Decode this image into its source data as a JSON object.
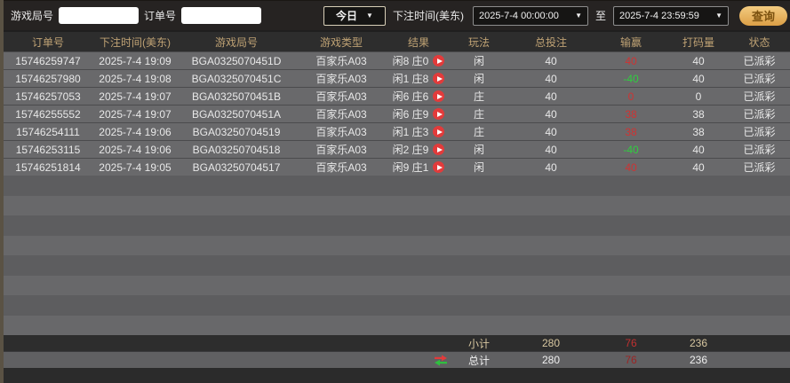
{
  "filters": {
    "game_round_label": "游戏局号",
    "game_round_value": "",
    "order_label": "订单号",
    "order_value": "",
    "preset": "今日",
    "bet_time_label": "下注时间(美东)",
    "start_time": "2025-7-4 00:00:00",
    "to_label": "至",
    "end_time": "2025-7-4 23:59:59",
    "search_label": "查询"
  },
  "icons": {
    "dropdown_caret": "▼",
    "play_badge": "▶",
    "swap_arrows": "⇄"
  },
  "colors": {
    "win_red": "#cf3333",
    "loss_green": "#2fcf3f",
    "header_gold": "#bfa274",
    "button_gold": "#e8b45e",
    "row_gray": "#69696b"
  },
  "table": {
    "headers": [
      "订单号",
      "下注时间(美东)",
      "游戏局号",
      "游戏类型",
      "结果",
      "玩法",
      "总投注",
      "输赢",
      "打码量",
      "状态"
    ],
    "rows": [
      {
        "order": "15746259747",
        "time": "2025-7-4 19:09",
        "round": "BGA0325070451D",
        "type": "百家乐A03",
        "result": "闲8 庄0",
        "play": "闲",
        "bet": "40",
        "winloss": "40",
        "winloss_color": "red",
        "turnover": "40",
        "status": "已派彩"
      },
      {
        "order": "15746257980",
        "time": "2025-7-4 19:08",
        "round": "BGA0325070451C",
        "type": "百家乐A03",
        "result": "闲1 庄8",
        "play": "闲",
        "bet": "40",
        "winloss": "-40",
        "winloss_color": "green",
        "turnover": "40",
        "status": "已派彩"
      },
      {
        "order": "15746257053",
        "time": "2025-7-4 19:07",
        "round": "BGA0325070451B",
        "type": "百家乐A03",
        "result": "闲6 庄6",
        "play": "庄",
        "bet": "40",
        "winloss": "0",
        "winloss_color": "red",
        "turnover": "0",
        "status": "已派彩"
      },
      {
        "order": "15746255552",
        "time": "2025-7-4 19:07",
        "round": "BGA0325070451A",
        "type": "百家乐A03",
        "result": "闲6 庄9",
        "play": "庄",
        "bet": "40",
        "winloss": "38",
        "winloss_color": "red",
        "turnover": "38",
        "status": "已派彩"
      },
      {
        "order": "15746254111",
        "time": "2025-7-4 19:06",
        "round": "BGA03250704519",
        "type": "百家乐A03",
        "result": "闲1 庄3",
        "play": "庄",
        "bet": "40",
        "winloss": "38",
        "winloss_color": "red",
        "turnover": "38",
        "status": "已派彩"
      },
      {
        "order": "15746253115",
        "time": "2025-7-4 19:06",
        "round": "BGA03250704518",
        "type": "百家乐A03",
        "result": "闲2 庄9",
        "play": "闲",
        "bet": "40",
        "winloss": "-40",
        "winloss_color": "green",
        "turnover": "40",
        "status": "已派彩"
      },
      {
        "order": "15746251814",
        "time": "2025-7-4 19:05",
        "round": "BGA03250704517",
        "type": "百家乐A03",
        "result": "闲9 庄1",
        "play": "闲",
        "bet": "40",
        "winloss": "40",
        "winloss_color": "red",
        "turnover": "40",
        "status": "已派彩"
      }
    ]
  },
  "summary": {
    "subtotal_label": "小计",
    "subtotal": {
      "bet": "280",
      "winloss": "76",
      "turnover": "236"
    },
    "total_label": "总计",
    "total": {
      "bet": "280",
      "winloss": "76",
      "turnover": "236"
    }
  }
}
